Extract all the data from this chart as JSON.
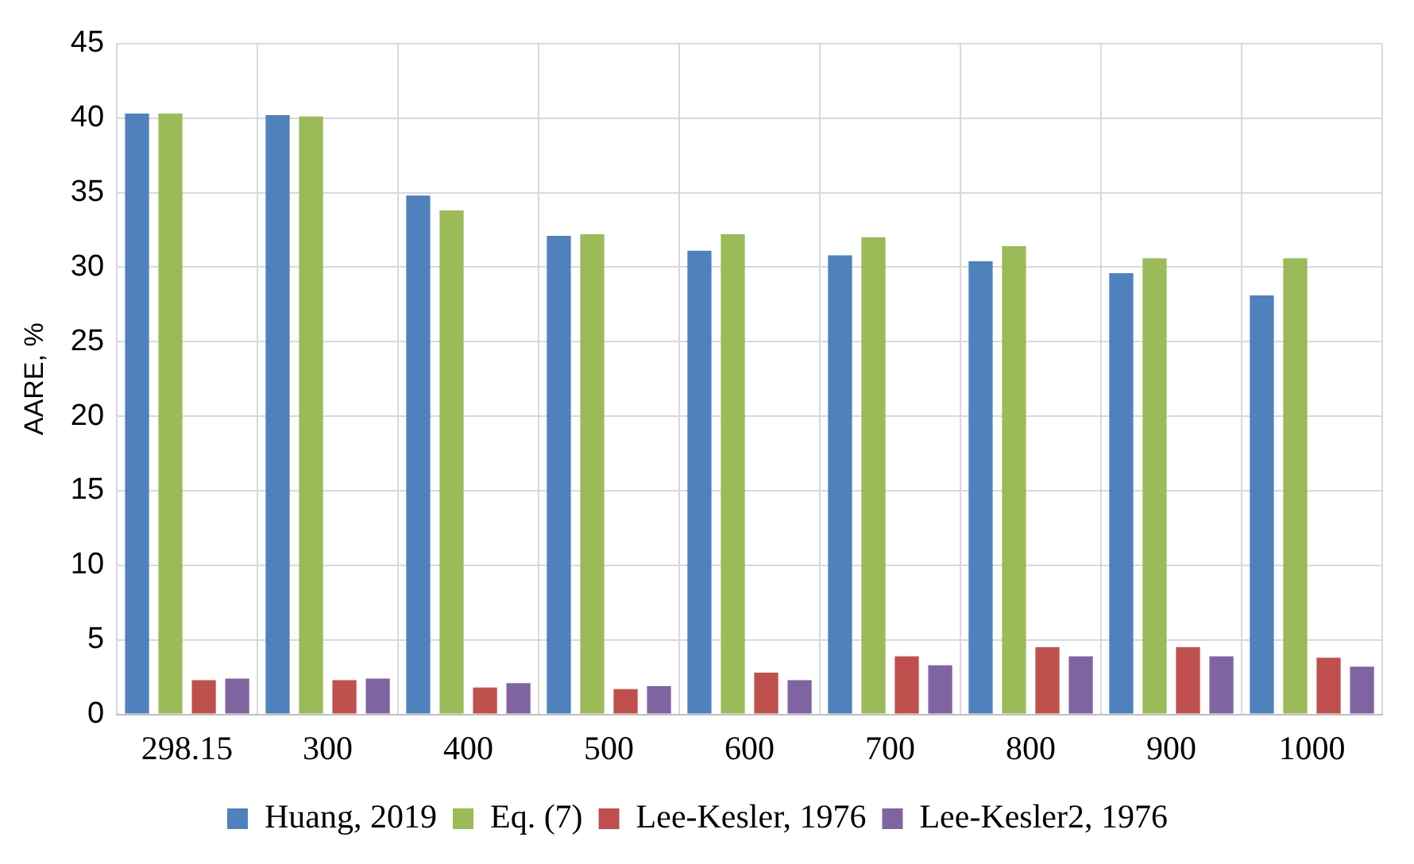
{
  "chart_data": {
    "type": "bar",
    "ylabel": "AARE, %",
    "categories": [
      "298.15",
      "300",
      "400",
      "500",
      "600",
      "700",
      "800",
      "900",
      "1000"
    ],
    "series": [
      {
        "name": "Huang, 2019",
        "color": "#4f81bd",
        "values": [
          40.3,
          40.2,
          34.8,
          32.1,
          31.1,
          30.8,
          30.4,
          29.6,
          28.1
        ]
      },
      {
        "name": "Eq. (7)",
        "color": "#9bbb59",
        "values": [
          40.3,
          40.1,
          33.8,
          32.2,
          32.2,
          32.0,
          31.4,
          30.6,
          30.6
        ]
      },
      {
        "name": "Lee-Kesler, 1976",
        "color": "#c0504d",
        "values": [
          2.3,
          2.3,
          1.8,
          1.7,
          2.8,
          3.9,
          4.5,
          4.5,
          3.8
        ]
      },
      {
        "name": "Lee-Kesler2, 1976",
        "color": "#8064a2",
        "values": [
          2.4,
          2.4,
          2.1,
          1.9,
          2.3,
          3.3,
          3.9,
          3.9,
          3.2
        ]
      }
    ],
    "ylim": [
      0,
      45
    ],
    "yticks": [
      0,
      5,
      10,
      15,
      20,
      25,
      30,
      35,
      40,
      45
    ],
    "grid": true,
    "legend": "bottom"
  }
}
